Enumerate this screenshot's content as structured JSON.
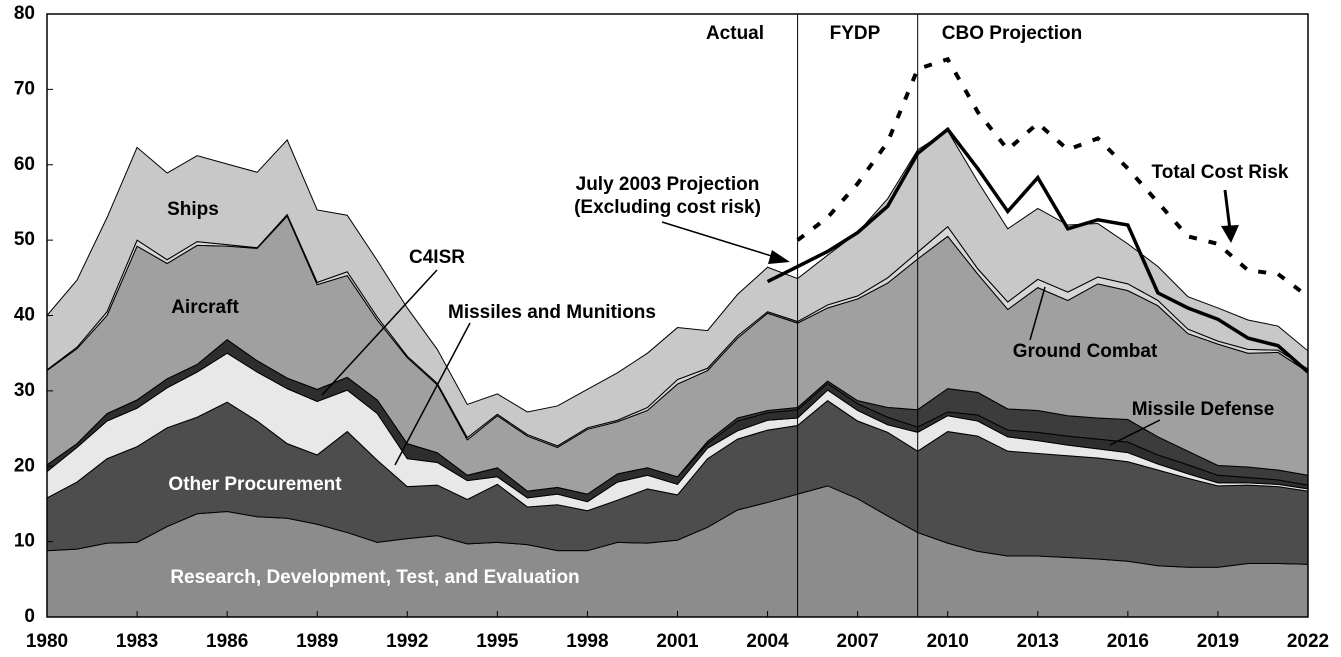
{
  "chart_data": {
    "type": "stacked_area",
    "x": [
      1980,
      1981,
      1982,
      1983,
      1984,
      1985,
      1986,
      1987,
      1988,
      1989,
      1990,
      1991,
      1992,
      1993,
      1994,
      1995,
      1996,
      1997,
      1998,
      1999,
      2000,
      2001,
      2002,
      2003,
      2004,
      2005,
      2006,
      2007,
      2008,
      2009,
      2010,
      2011,
      2012,
      2013,
      2014,
      2015,
      2016,
      2017,
      2018,
      2019,
      2020,
      2021,
      2022
    ],
    "xlim": [
      1980,
      2022
    ],
    "xticks": [
      1980,
      1983,
      1986,
      1989,
      1992,
      1995,
      1998,
      2001,
      2004,
      2007,
      2010,
      2013,
      2016,
      2019,
      2022
    ],
    "ylim": [
      0,
      80
    ],
    "yticks": [
      0,
      10,
      20,
      30,
      40,
      50,
      60,
      70,
      80
    ],
    "series": [
      {
        "name": "Research, Development, Test, and Evaluation",
        "color": "#8c8c8c",
        "values": [
          8.8,
          9,
          9.8,
          9.9,
          12,
          13.7,
          14,
          13.3,
          13.1,
          12.3,
          11.2,
          9.9,
          10.4,
          10.8,
          9.7,
          9.9,
          9.6,
          8.8,
          8.8,
          9.9,
          9.8,
          10.2,
          11.9,
          14.2,
          15.2,
          16.3,
          17.4,
          15.7,
          13.4,
          11.2,
          9.8,
          8.7,
          8.1,
          8.1,
          7.9,
          7.7,
          7.4,
          6.8,
          6.6,
          6.6,
          7.1,
          7.1,
          7.0
        ]
      },
      {
        "name": "Other Procurement",
        "color": "#4d4d4d",
        "values": [
          7.0,
          8.9,
          11.2,
          12.7,
          13.1,
          12.8,
          14.5,
          12.7,
          9.9,
          9.2,
          13.4,
          10.9,
          6.9,
          6.7,
          5.9,
          7.7,
          5.0,
          6.1,
          5.3,
          5.6,
          7.2,
          6.0,
          9.1,
          9.4,
          9.6,
          9.1,
          11.3,
          10.3,
          11.1,
          10.8,
          14.8,
          15.3,
          13.9,
          13.6,
          13.5,
          13.4,
          13.2,
          12.7,
          11.8,
          10.8,
          10.4,
          10.2,
          9.7
        ]
      },
      {
        "name": "Missiles and Munitions",
        "color": "#e8e8e8",
        "values": [
          3.5,
          4.6,
          5.0,
          5.1,
          5.3,
          6.0,
          6.5,
          6.5,
          7.3,
          7.1,
          5.5,
          6.2,
          3.7,
          3.0,
          2.5,
          1.0,
          1.2,
          1.4,
          1.2,
          2.4,
          1.8,
          1.4,
          1.4,
          1.1,
          1.3,
          1.0,
          1.4,
          1.4,
          1.0,
          2.5,
          2.1,
          2.0,
          1.9,
          1.7,
          1.4,
          1.2,
          1.2,
          0.8,
          0.6,
          0.4,
          0.3,
          0.3,
          0.3
        ]
      },
      {
        "name": "C4ISR",
        "color": "#2e2e2e",
        "values": [
          0.9,
          0.5,
          1.0,
          1.1,
          1.2,
          1.0,
          1.8,
          1.5,
          1.4,
          1.6,
          1.7,
          1.8,
          2.0,
          1.3,
          0.7,
          1.2,
          0.9,
          0.9,
          1.0,
          1.1,
          1.0,
          1.0,
          0.6,
          1.3,
          1.0,
          1.1,
          0.9,
          0.9,
          1.0,
          0.7,
          0.5,
          0.8,
          0.9,
          1.1,
          1.2,
          1.3,
          1.4,
          1.2,
          1.2,
          1.0,
          0.7,
          0.6,
          0.5
        ]
      },
      {
        "name": "Missile Defense",
        "color": "#3c3c3c",
        "values": [
          0,
          0,
          0,
          0,
          0,
          0,
          0,
          0,
          0,
          0,
          0,
          0,
          0,
          0,
          0,
          0,
          0,
          0,
          0,
          0,
          0,
          0,
          0.3,
          0.4,
          0.3,
          0.3,
          0.3,
          0.4,
          1.3,
          2.3,
          3.1,
          3.0,
          2.8,
          2.9,
          2.7,
          2.8,
          3.0,
          2.4,
          1.8,
          1.3,
          1.4,
          1.3,
          1.3
        ]
      },
      {
        "name": "Aircraft",
        "color": "#a0a0a0",
        "values": [
          12.5,
          12.6,
          13.0,
          20.4,
          15.3,
          15.8,
          12.4,
          14.9,
          21.5,
          13.9,
          13.5,
          10.6,
          11.4,
          9.0,
          4.7,
          6.9,
          7.3,
          5.3,
          8.6,
          6.9,
          7.6,
          12.3,
          9.4,
          10.6,
          12.9,
          11.2,
          9.7,
          13.5,
          16.5,
          20.0,
          20.2,
          15.7,
          13.2,
          16.3,
          15.3,
          17.8,
          17.1,
          17.4,
          15.6,
          16.1,
          15.1,
          15.6,
          13.7
        ]
      },
      {
        "name": "Ground Combat",
        "color": "#d6d6d6",
        "values": [
          0.1,
          0.2,
          0.5,
          0.8,
          0.5,
          0.5,
          0.2,
          0.1,
          0.2,
          0.3,
          0.5,
          0.4,
          0.2,
          0.2,
          0.3,
          0.2,
          0.2,
          0.2,
          0.2,
          0.2,
          0.4,
          0.6,
          0.3,
          0.3,
          0.2,
          0.2,
          0.4,
          0.4,
          0.7,
          0.9,
          1.3,
          0.7,
          1.0,
          1.1,
          1.1,
          0.9,
          0.9,
          0.7,
          0.6,
          0.4,
          0.5,
          0.3,
          0.4
        ]
      },
      {
        "name": "Ships",
        "color": "#c8c8c8",
        "values": [
          7.2,
          8.9,
          12.5,
          12.3,
          11.5,
          11.4,
          10.7,
          10.0,
          9.9,
          9.6,
          7.5,
          7.5,
          6.4,
          4.5,
          4.4,
          2.7,
          3.0,
          5.3,
          5.1,
          6.3,
          7.2,
          6.9,
          5.0,
          5.5,
          5.9,
          5.7,
          6.6,
          8.4,
          10.5,
          13.6,
          12.7,
          11.6,
          9.7,
          9.4,
          8.9,
          7.1,
          5.3,
          4.5,
          4.3,
          4.4,
          3.9,
          3.2,
          2.4
        ]
      }
    ],
    "lines": [
      {
        "name": "July 2003 Projection\n(Excluding cost risk)",
        "color": "#000000",
        "style": "solid",
        "values": [
          null,
          null,
          null,
          null,
          null,
          null,
          null,
          null,
          null,
          null,
          null,
          null,
          null,
          null,
          null,
          null,
          null,
          null,
          null,
          null,
          null,
          null,
          null,
          null,
          44.5,
          46.5,
          48.5,
          51,
          54.5,
          61.5,
          64.7,
          59.5,
          53.8,
          58.3,
          51.5,
          52.7,
          52,
          43,
          41,
          39.5,
          37,
          36,
          32.5
        ]
      },
      {
        "name": "Total Cost Risk",
        "color": "#000000",
        "style": "dotted",
        "values": [
          null,
          null,
          null,
          null,
          null,
          null,
          null,
          null,
          null,
          null,
          null,
          null,
          null,
          null,
          null,
          null,
          null,
          null,
          null,
          null,
          null,
          null,
          null,
          null,
          null,
          50,
          53,
          57.5,
          63,
          72.7,
          74,
          67,
          62,
          65.5,
          62,
          63.5,
          59.5,
          55,
          50.5,
          49.5,
          46,
          45.5,
          42.5
        ]
      }
    ],
    "period_lines": [
      2005,
      2009
    ],
    "annotations": [
      "Actual",
      "FYDP",
      "CBO Projection"
    ]
  }
}
